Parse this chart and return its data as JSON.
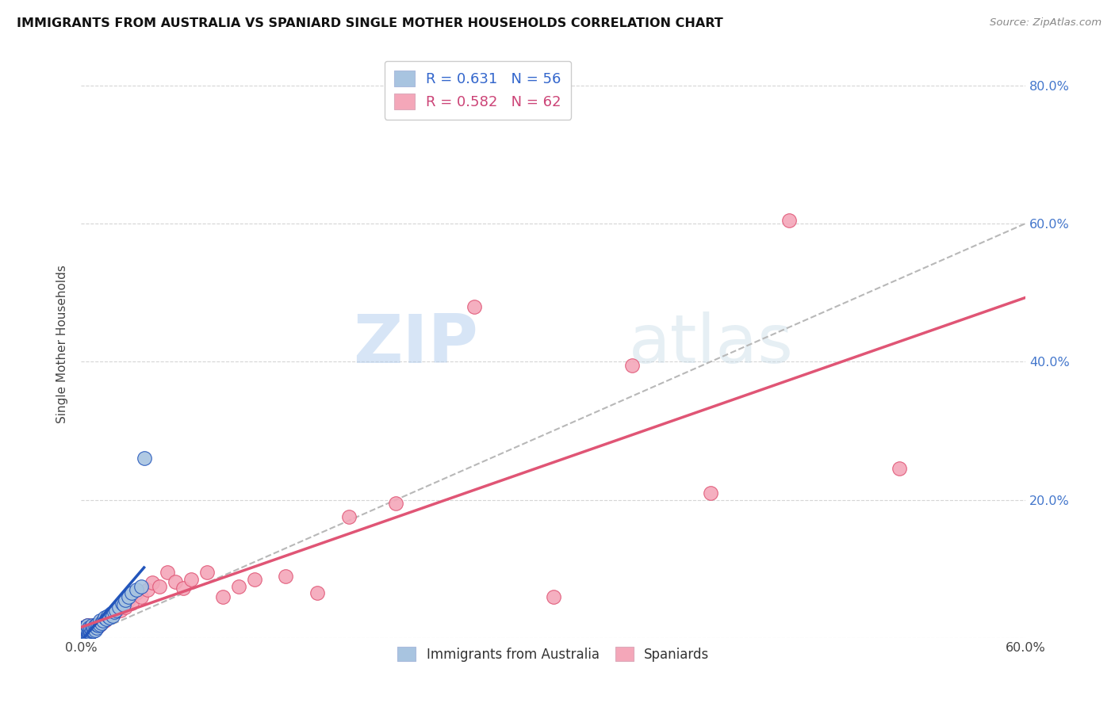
{
  "title": "IMMIGRANTS FROM AUSTRALIA VS SPANIARD SINGLE MOTHER HOUSEHOLDS CORRELATION CHART",
  "source": "Source: ZipAtlas.com",
  "ylabel": "Single Mother Households",
  "xlim": [
    0.0,
    0.6
  ],
  "ylim": [
    0.0,
    0.85
  ],
  "legend1_label": "R = 0.631   N = 56",
  "legend2_label": "R = 0.582   N = 62",
  "color_australia": "#a8c4e0",
  "color_spaniard": "#f4a7b9",
  "line_color_australia": "#2255bb",
  "line_color_spaniard": "#e05575",
  "trendline_color": "#b8b8b8",
  "watermark_zip": "ZIP",
  "watermark_atlas": "atlas",
  "australia_x": [
    0.001,
    0.001,
    0.001,
    0.001,
    0.002,
    0.002,
    0.002,
    0.002,
    0.002,
    0.003,
    0.003,
    0.003,
    0.003,
    0.004,
    0.004,
    0.004,
    0.004,
    0.004,
    0.005,
    0.005,
    0.005,
    0.005,
    0.006,
    0.006,
    0.006,
    0.007,
    0.007,
    0.007,
    0.008,
    0.008,
    0.009,
    0.009,
    0.01,
    0.01,
    0.011,
    0.012,
    0.012,
    0.013,
    0.014,
    0.015,
    0.016,
    0.017,
    0.018,
    0.019,
    0.02,
    0.021,
    0.022,
    0.024,
    0.026,
    0.027,
    0.028,
    0.03,
    0.032,
    0.035,
    0.038,
    0.04
  ],
  "australia_y": [
    0.005,
    0.008,
    0.01,
    0.015,
    0.005,
    0.008,
    0.01,
    0.012,
    0.015,
    0.005,
    0.008,
    0.01,
    0.015,
    0.005,
    0.008,
    0.01,
    0.012,
    0.018,
    0.005,
    0.008,
    0.012,
    0.015,
    0.008,
    0.01,
    0.015,
    0.01,
    0.012,
    0.018,
    0.01,
    0.015,
    0.012,
    0.018,
    0.015,
    0.02,
    0.018,
    0.02,
    0.025,
    0.022,
    0.025,
    0.03,
    0.028,
    0.032,
    0.03,
    0.035,
    0.032,
    0.038,
    0.04,
    0.045,
    0.05,
    0.048,
    0.055,
    0.06,
    0.065,
    0.07,
    0.075,
    0.26
  ],
  "spaniard_x": [
    0.001,
    0.001,
    0.001,
    0.001,
    0.002,
    0.002,
    0.002,
    0.002,
    0.003,
    0.003,
    0.003,
    0.003,
    0.004,
    0.004,
    0.004,
    0.005,
    0.005,
    0.005,
    0.006,
    0.006,
    0.007,
    0.007,
    0.008,
    0.008,
    0.009,
    0.01,
    0.01,
    0.011,
    0.012,
    0.013,
    0.015,
    0.016,
    0.018,
    0.02,
    0.022,
    0.025,
    0.028,
    0.03,
    0.032,
    0.035,
    0.038,
    0.042,
    0.045,
    0.05,
    0.055,
    0.06,
    0.065,
    0.07,
    0.08,
    0.09,
    0.1,
    0.11,
    0.13,
    0.15,
    0.17,
    0.2,
    0.25,
    0.3,
    0.35,
    0.4,
    0.45,
    0.52
  ],
  "spaniard_y": [
    0.005,
    0.008,
    0.01,
    0.015,
    0.005,
    0.008,
    0.01,
    0.015,
    0.005,
    0.008,
    0.01,
    0.015,
    0.008,
    0.012,
    0.018,
    0.008,
    0.012,
    0.018,
    0.01,
    0.015,
    0.01,
    0.015,
    0.012,
    0.018,
    0.015,
    0.015,
    0.02,
    0.018,
    0.02,
    0.025,
    0.025,
    0.03,
    0.032,
    0.035,
    0.038,
    0.04,
    0.045,
    0.055,
    0.05,
    0.065,
    0.06,
    0.07,
    0.08,
    0.075,
    0.095,
    0.082,
    0.072,
    0.085,
    0.095,
    0.06,
    0.075,
    0.085,
    0.09,
    0.065,
    0.175,
    0.195,
    0.48,
    0.06,
    0.395,
    0.21,
    0.605,
    0.245
  ]
}
